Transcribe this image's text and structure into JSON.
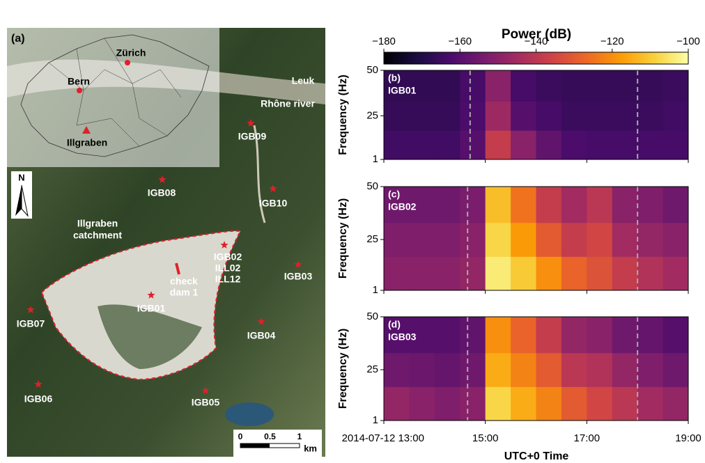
{
  "map": {
    "panel_label": "(a)",
    "inset_places": [
      "Zürich",
      "Bern",
      "Illgraben"
    ],
    "rivers": [
      "Leuk",
      "Rhône river"
    ],
    "north": "N",
    "catchment_label": [
      "Illgraben",
      "catchment"
    ],
    "check_dam": [
      "check",
      "dam 1"
    ],
    "stations": [
      [
        "IGB09"
      ],
      [
        "IGB08"
      ],
      [
        "IGB10"
      ],
      [
        "IGB02",
        "ILL02",
        "ILL12"
      ],
      [
        "IGB03"
      ],
      [
        "IGB01"
      ],
      [
        "IGB07"
      ],
      [
        "IGB04"
      ],
      [
        "IGB06"
      ],
      [
        "IGB05"
      ]
    ],
    "scale": {
      "ticks": [
        0,
        0.5,
        1
      ],
      "unit": "km"
    }
  },
  "chart_data": [
    {
      "type": "colorbar",
      "title": "Power (dB)",
      "vlim": [
        -180,
        -100
      ],
      "ticks": [
        {
          "value": -180,
          "label": "−180"
        },
        {
          "value": -160,
          "label": "−160"
        },
        {
          "value": -140,
          "label": "−140"
        },
        {
          "value": -120,
          "label": "−120"
        },
        {
          "value": -100,
          "label": "−100"
        }
      ],
      "colormap": [
        "#000004",
        "#1b0c41",
        "#4a0c6b",
        "#781c6d",
        "#a52c60",
        "#cf4446",
        "#ed6925",
        "#fb9b06",
        "#f7d13d",
        "#fcffa4"
      ]
    },
    {
      "type": "heatmap",
      "label": "(b)",
      "station": "IGB01",
      "ylabel": "Frequency (Hz)",
      "xlim": [
        13,
        19
      ],
      "xticks": [
        13,
        15,
        17,
        19
      ],
      "ylim": [
        1,
        50
      ],
      "yticks": [
        1,
        25,
        50
      ],
      "xbins": [
        13,
        13.5,
        14,
        14.5,
        15,
        15.5,
        16,
        16.5,
        17,
        17.5,
        18,
        18.5,
        19
      ],
      "ybins": [
        1,
        17,
        33,
        50
      ],
      "markers": [
        14.7,
        18
      ],
      "values": [
        [
          -164,
          -164,
          -164,
          -160,
          -138,
          -150,
          -158,
          -162,
          -163,
          -163,
          -163,
          -163
        ],
        [
          -166,
          -166,
          -166,
          -162,
          -146,
          -160,
          -163,
          -165,
          -165,
          -165,
          -165,
          -164
        ],
        [
          -167,
          -167,
          -167,
          -163,
          -150,
          -163,
          -165,
          -166,
          -166,
          -166,
          -166,
          -165
        ]
      ]
    },
    {
      "type": "heatmap",
      "label": "(c)",
      "station": "IGB02",
      "ylabel": "Frequency (Hz)",
      "xlim": [
        13,
        19
      ],
      "xticks": [
        13,
        15,
        17,
        19
      ],
      "ylim": [
        1,
        50
      ],
      "yticks": [
        1,
        25,
        50
      ],
      "xbins": [
        13,
        13.5,
        14,
        14.5,
        15,
        15.5,
        16,
        16.5,
        17,
        17.5,
        18,
        18.5,
        19
      ],
      "ybins": [
        1,
        17,
        33,
        50
      ],
      "markers": [
        14.65,
        18
      ],
      "values": [
        [
          -150,
          -150,
          -150,
          -148,
          -104,
          -110,
          -120,
          -128,
          -132,
          -138,
          -142,
          -145
        ],
        [
          -152,
          -152,
          -152,
          -150,
          -108,
          -118,
          -130,
          -138,
          -135,
          -145,
          -148,
          -150
        ],
        [
          -155,
          -155,
          -155,
          -153,
          -112,
          -125,
          -138,
          -145,
          -140,
          -150,
          -152,
          -155
        ]
      ]
    },
    {
      "type": "heatmap",
      "label": "(d)",
      "station": "IGB03",
      "ylabel": "Frequency (Hz)",
      "xlabel": "UTC+0 Time",
      "xlim": [
        13,
        19
      ],
      "xticks": [
        {
          "value": 13,
          "label": "2014-07-12 13:00"
        },
        {
          "value": 15,
          "label": "15:00"
        },
        {
          "value": 17,
          "label": "17:00"
        },
        {
          "value": 19,
          "label": "19:00"
        }
      ],
      "ylim": [
        1,
        50
      ],
      "yticks": [
        1,
        25,
        50
      ],
      "xbins": [
        13,
        13.5,
        14,
        14.5,
        15,
        15.5,
        16,
        16.5,
        17,
        17.5,
        18,
        18.5,
        19
      ],
      "ybins": [
        1,
        17,
        33,
        50
      ],
      "markers": [
        14.65,
        18
      ],
      "values": [
        [
          -148,
          -150,
          -152,
          -150,
          -108,
          -115,
          -122,
          -130,
          -135,
          -140,
          -145,
          -148
        ],
        [
          -155,
          -156,
          -157,
          -155,
          -115,
          -122,
          -130,
          -140,
          -142,
          -148,
          -152,
          -155
        ],
        [
          -160,
          -160,
          -160,
          -158,
          -120,
          -128,
          -138,
          -148,
          -150,
          -155,
          -157,
          -160
        ]
      ]
    }
  ]
}
